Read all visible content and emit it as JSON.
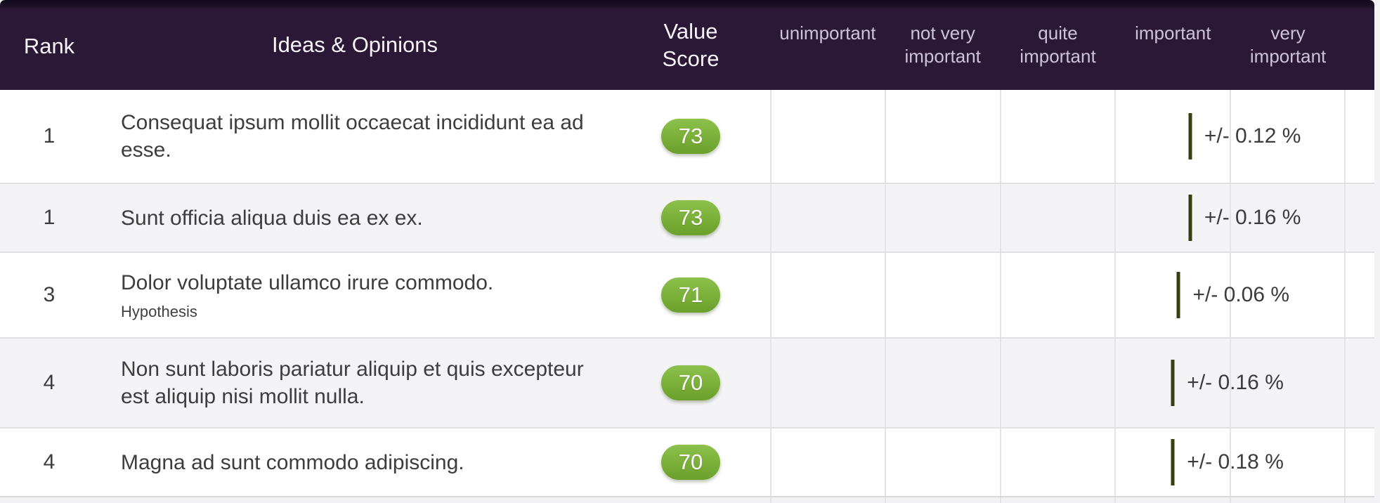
{
  "header": {
    "rank_label": "Rank",
    "ideas_label": "Ideas & Opinions",
    "value_score_label": "Value Score",
    "scale_labels": [
      "unimportant",
      "not very important",
      "quite important",
      "important",
      "very important"
    ]
  },
  "rows": [
    {
      "rank": "1",
      "title": "Consequat ipsum mollit occaecat incididunt ea ad esse.",
      "score": 73,
      "error": "+/- 0.12 %"
    },
    {
      "rank": "1",
      "title": "Sunt officia aliqua duis ea ex ex.",
      "score": 73,
      "error": "+/- 0.16 %"
    },
    {
      "rank": "3",
      "title": "Dolor voluptate ullamco irure commodo.",
      "subtitle": "Hypothesis",
      "score": 71,
      "error": "+/- 0.06 %"
    },
    {
      "rank": "4",
      "title": "Non sunt laboris pariatur aliquip et quis excepteur est aliquip nisi mollit nulla.",
      "score": 70,
      "error": "+/- 0.16 %"
    },
    {
      "rank": "4",
      "title": "Magna ad sunt commodo adipiscing.",
      "score": 70,
      "error": "+/- 0.18 %"
    }
  ],
  "chart_data": {
    "type": "table",
    "title": "Ideas & Opinions ranking",
    "columns": [
      "Rank",
      "Ideas & Opinions",
      "Value Score",
      "unimportant",
      "not very important",
      "quite important",
      "important",
      "very important"
    ],
    "scale_range": [
      0,
      100
    ],
    "series": [
      {
        "name": "Consequat ipsum mollit occaecat incididunt ea ad esse.",
        "rank": 1,
        "value_score": 73,
        "error_pct": 0.12
      },
      {
        "name": "Sunt officia aliqua duis ea ex ex.",
        "rank": 1,
        "value_score": 73,
        "error_pct": 0.16
      },
      {
        "name": "Dolor voluptate ullamco irure commodo.",
        "rank": 3,
        "value_score": 71,
        "error_pct": 0.06
      },
      {
        "name": "Non sunt laboris pariatur aliquip et quis excepteur est aliquip nisi mollit nulla.",
        "rank": 4,
        "value_score": 70,
        "error_pct": 0.16
      },
      {
        "name": "Magna ad sunt commodo adipiscing.",
        "rank": 4,
        "value_score": 70,
        "error_pct": 0.18
      }
    ]
  },
  "colors": {
    "header_bg": "#2b1736",
    "header_text": "#f8f3fa",
    "scale_header_text": "#cdc2d9",
    "badge_green": "#7db23c",
    "marker_olive": "#363f10",
    "row_alt_bg": "#f4f4f6",
    "grid_line": "#e4e4e7"
  }
}
